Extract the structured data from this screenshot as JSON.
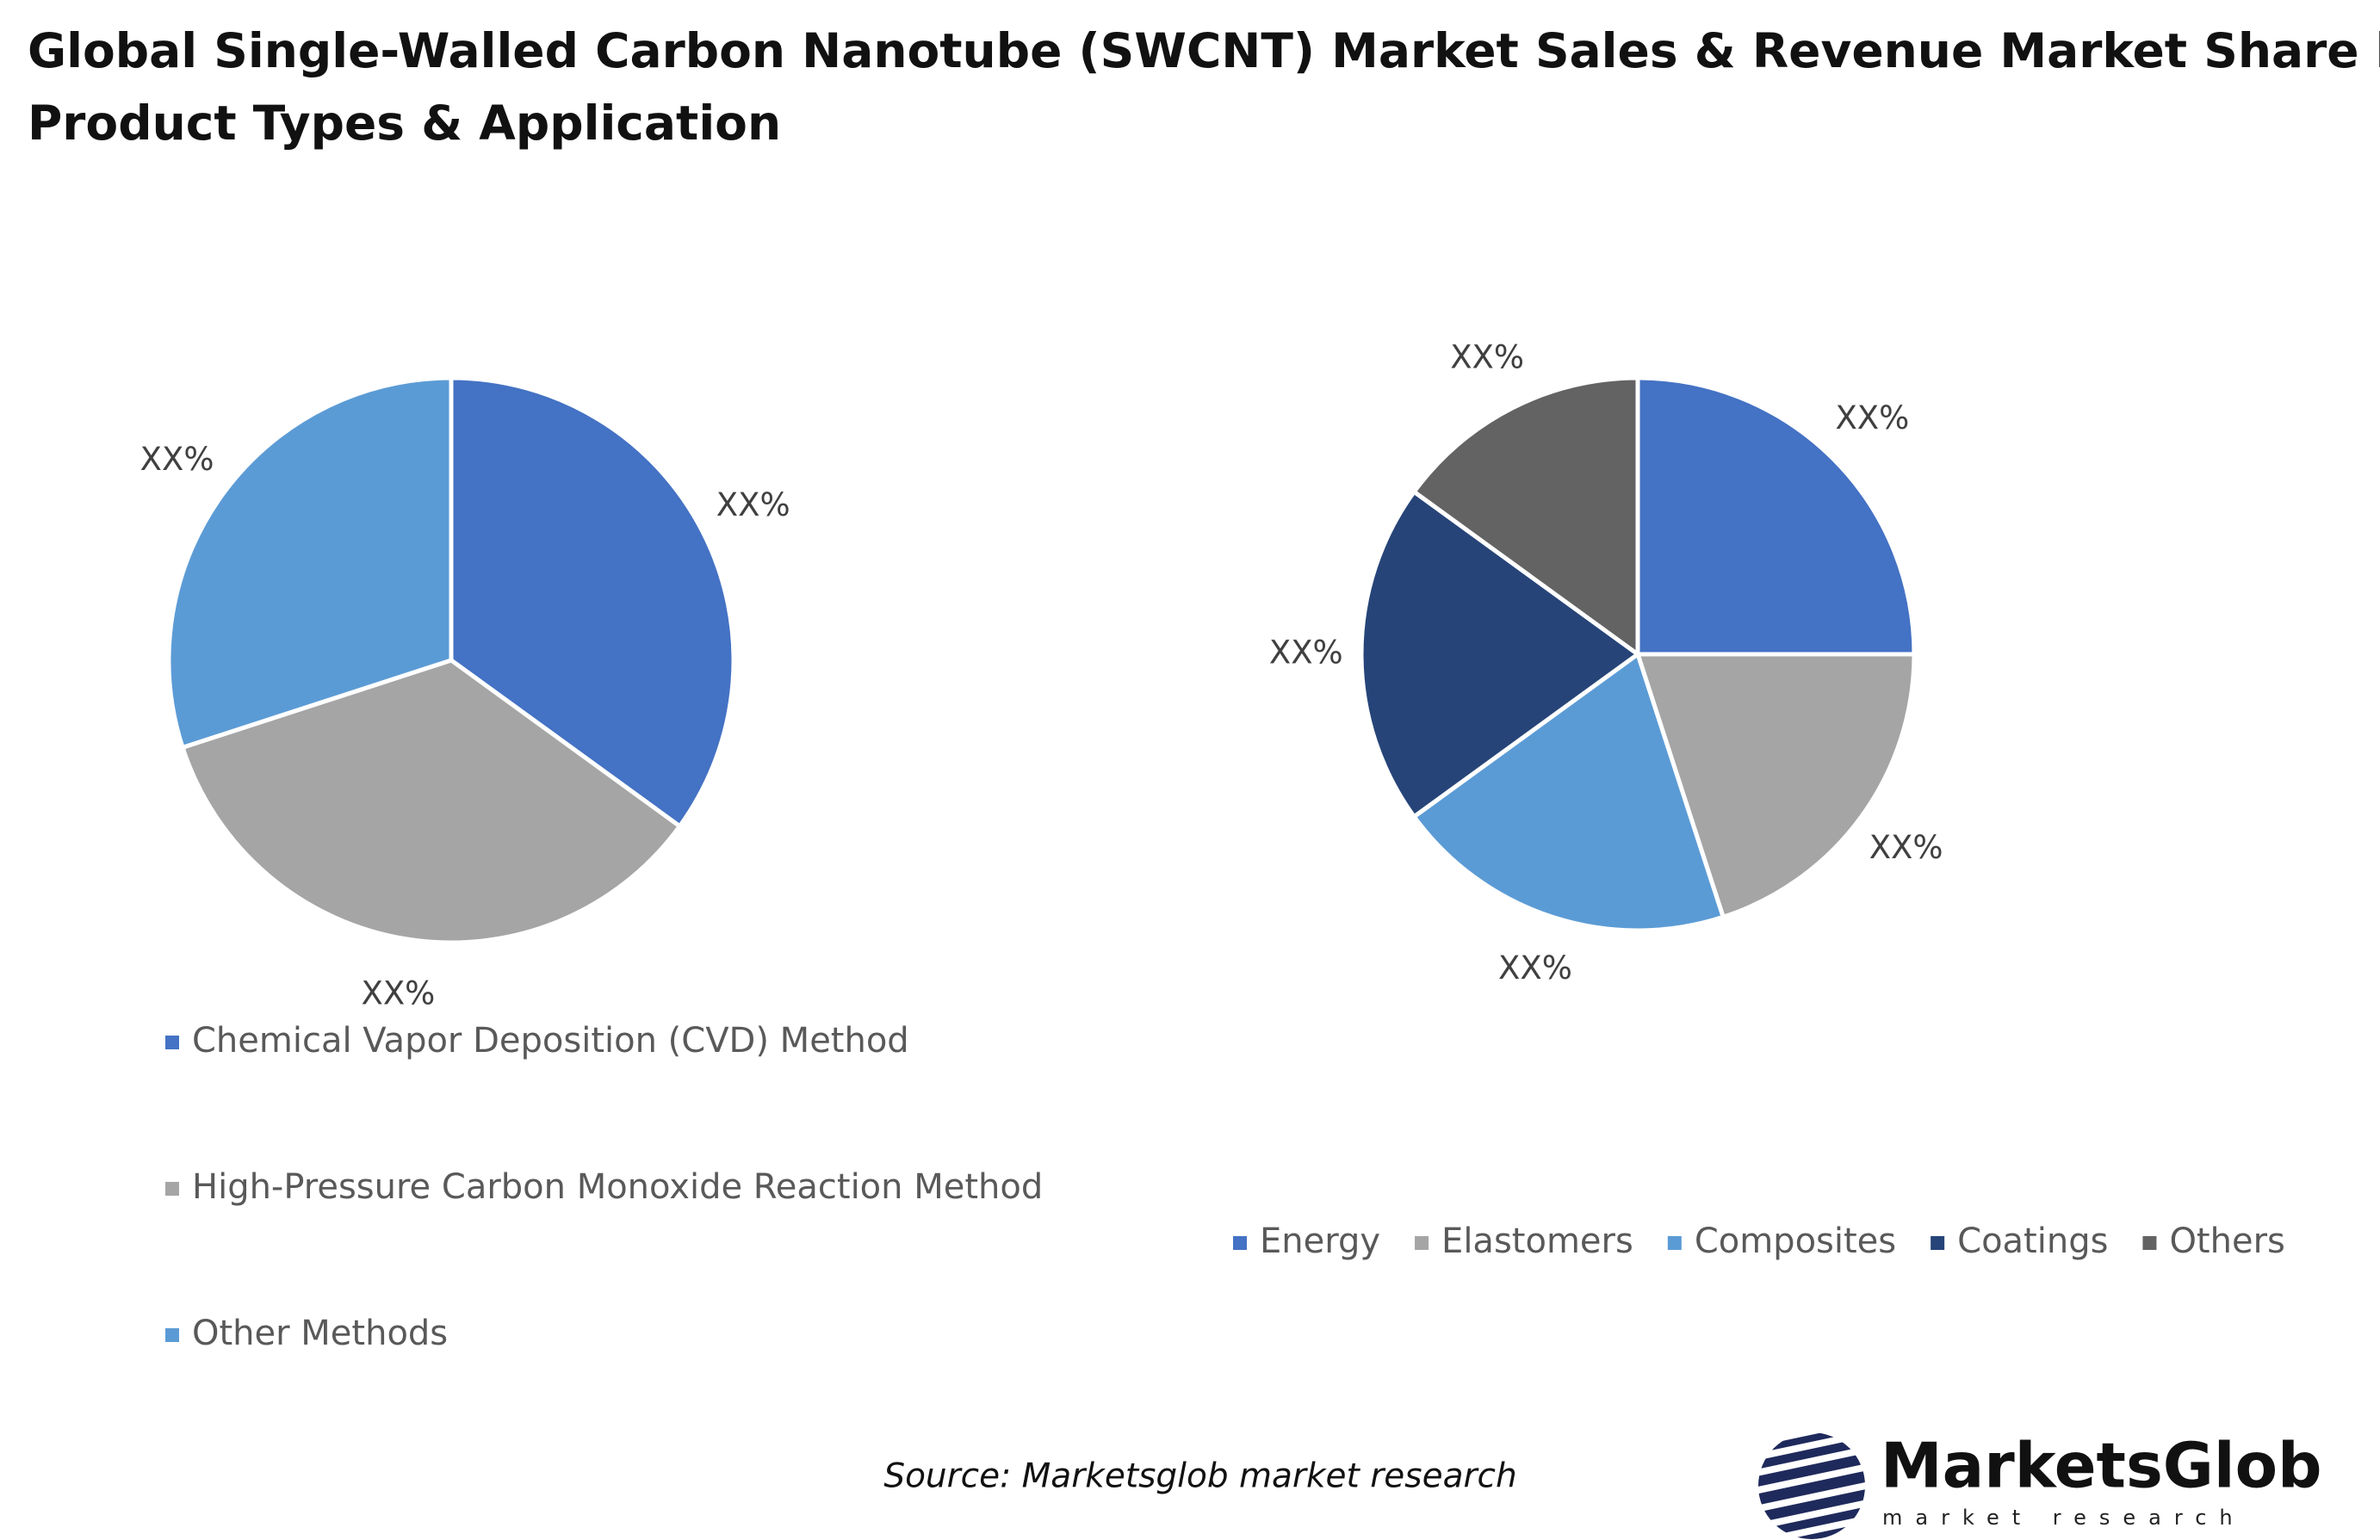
{
  "title": [
    "Global Single-Walled Carbon Nanotube (SWCNT) Market Sales & Revenue Market Share by",
    "Product Types & Application"
  ],
  "chart_data": [
    {
      "type": "pie",
      "legend": "vertical",
      "categories": [
        "Chemical Vapor Deposition (CVD) Method",
        "High-Pressure Carbon Monoxide Reaction Method",
        "Other Methods"
      ],
      "values": [
        35,
        35,
        30
      ],
      "value_labels": [
        "XX%",
        "XX%",
        "XX%"
      ],
      "colors": [
        "#4472c4",
        "#a5a5a5",
        "#5b9bd5"
      ]
    },
    {
      "type": "pie",
      "legend": "horizontal",
      "categories": [
        "Energy",
        "Elastomers",
        "Composites",
        "Coatings",
        "Others"
      ],
      "values": [
        25,
        20,
        20,
        20,
        15
      ],
      "value_labels": [
        "XX%",
        "XX%",
        "XX%",
        "XX%",
        "XX%"
      ],
      "colors": [
        "#4472c4",
        "#a5a5a5",
        "#5b9bd5",
        "#264478",
        "#636363"
      ]
    }
  ],
  "source": "Source: Marketsglob market research",
  "logo": {
    "name": "MarketsGlob",
    "tagline": "market research"
  }
}
